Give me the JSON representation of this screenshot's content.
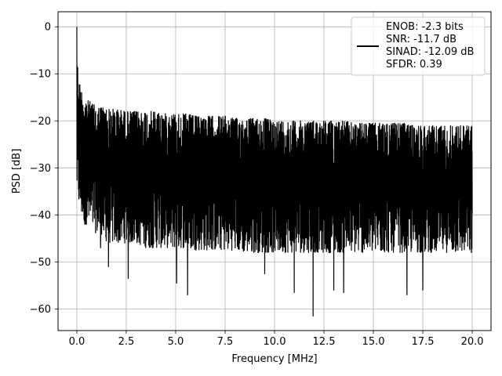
{
  "chart_data": {
    "type": "line",
    "title": "",
    "xlabel": "Frequency [MHz]",
    "ylabel": "PSD [dB]",
    "xlim": [
      -0.95,
      20.95
    ],
    "ylim": [
      -64.6,
      3.2
    ],
    "xticks": [
      0.0,
      2.5,
      5.0,
      7.5,
      10.0,
      12.5,
      15.0,
      17.5,
      20.0
    ],
    "xtick_labels": [
      "0.0",
      "2.5",
      "5.0",
      "7.5",
      "10.0",
      "12.5",
      "15.0",
      "17.5",
      "20.0"
    ],
    "yticks": [
      0,
      -10,
      -20,
      -30,
      -40,
      -50,
      -60
    ],
    "ytick_labels": [
      "0",
      "−10",
      "−20",
      "−30",
      "−40",
      "−50",
      "−60"
    ],
    "grid": true,
    "legend_position": "top-right",
    "legend_lines": [
      "ENOB: -2.3 bits",
      "SNR: -11.7 dB",
      "SINAD: -12.09 dB",
      "SFDR: 0.39"
    ],
    "series_color": "#000000",
    "series": [
      {
        "name": "",
        "x": [
          0.0,
          0.03,
          0.06,
          0.1,
          0.15,
          0.2,
          0.3,
          0.4,
          0.5,
          0.7,
          1.0,
          1.3,
          1.6,
          2.0,
          2.5,
          3.0,
          3.5,
          4.0,
          4.5,
          5.0,
          5.5,
          6.0,
          6.5,
          7.0,
          7.5,
          8.0,
          8.5,
          9.0,
          9.5,
          10.0,
          10.5,
          11.0,
          11.5,
          12.0,
          12.5,
          13.0,
          13.5,
          14.0,
          14.5,
          15.0,
          15.5,
          16.0,
          16.5,
          17.0,
          17.5,
          18.0,
          18.5,
          19.0,
          19.5,
          20.0
        ],
        "upper": [
          0,
          -7,
          -9,
          -11,
          -12,
          -13,
          -14,
          -15,
          -15.5,
          -16,
          -17,
          -17,
          -17.5,
          -17.5,
          -18,
          -18,
          -18,
          -18,
          -18.5,
          -18.5,
          -18.5,
          -19,
          -19,
          -19,
          -19,
          -19.5,
          -19.5,
          -19.5,
          -19.5,
          -20,
          -20,
          -20,
          -20,
          -20,
          -20,
          -20,
          -20,
          -20.5,
          -20.5,
          -20.5,
          -20.5,
          -20.5,
          -20.5,
          -21,
          -21,
          -21,
          -21,
          -21,
          -21,
          -21
        ],
        "lower": [
          -35,
          -36,
          -37,
          -38,
          -39,
          -40,
          -41,
          -42,
          -42,
          -43,
          -44,
          -45,
          -46,
          -46,
          -46,
          -46,
          -47,
          -47,
          -47,
          -47,
          -47,
          -47.5,
          -47.5,
          -47.5,
          -47.5,
          -47.5,
          -48,
          -48,
          -48,
          -48,
          -48,
          -48,
          -48,
          -48,
          -48,
          -48,
          -48,
          -48,
          -48,
          -48,
          -48,
          -48,
          -48,
          -48,
          -48,
          -48,
          -48,
          -48,
          -48,
          -48
        ],
        "spikes": [
          {
            "x": 0.0,
            "y": 0.0
          },
          {
            "x": 0.4,
            "y": -42.0
          },
          {
            "x": 1.2,
            "y": -47.0
          },
          {
            "x": 1.6,
            "y": -51.0
          },
          {
            "x": 2.6,
            "y": -53.5
          },
          {
            "x": 5.05,
            "y": -54.5
          },
          {
            "x": 5.6,
            "y": -57.0
          },
          {
            "x": 9.5,
            "y": -52.5
          },
          {
            "x": 11.0,
            "y": -56.5
          },
          {
            "x": 11.95,
            "y": -61.5
          },
          {
            "x": 13.0,
            "y": -56.0
          },
          {
            "x": 13.5,
            "y": -56.5
          },
          {
            "x": 16.7,
            "y": -57.0
          },
          {
            "x": 17.5,
            "y": -56.0
          },
          {
            "x": 19.95,
            "y": -48.0
          }
        ]
      }
    ]
  }
}
